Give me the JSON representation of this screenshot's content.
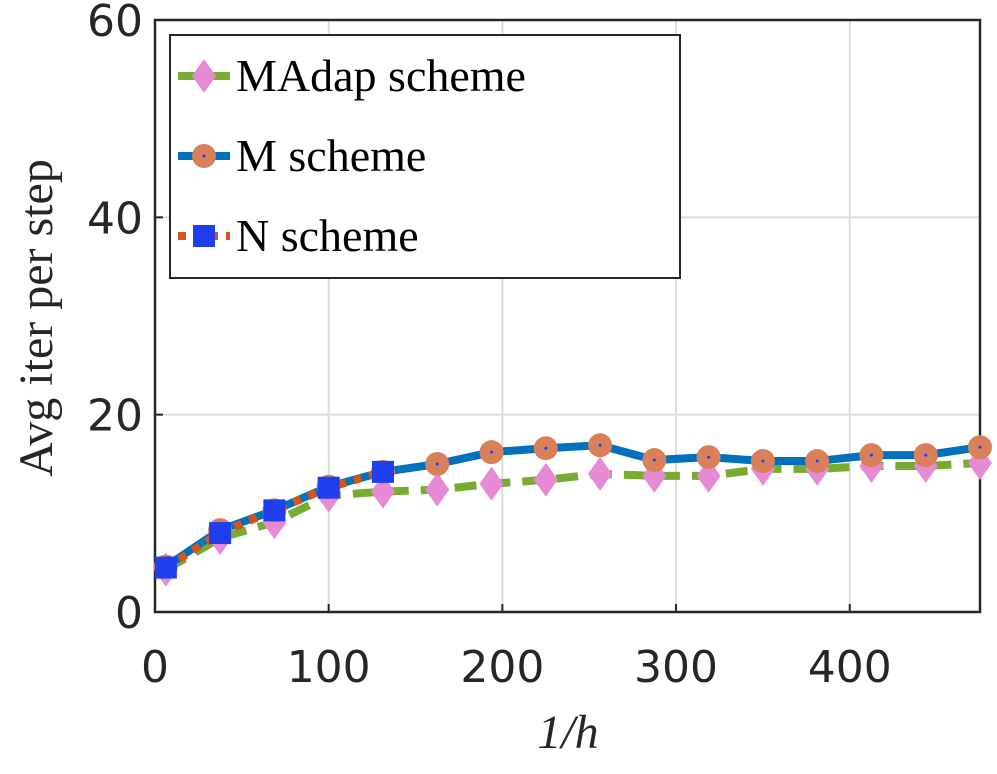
{
  "chart_data": {
    "type": "line",
    "xlabel": "1/h",
    "ylabel": "Avg iter per step",
    "x": [
      6.25,
      37.5,
      68.75,
      100,
      131.25,
      162.5,
      193.75,
      225,
      256.25,
      287.5,
      318.75,
      350,
      381.25,
      412.5,
      443.75,
      475
    ],
    "series": [
      {
        "name": "MAdap scheme",
        "color": "#77ac30",
        "marker_color": "#e68ad4",
        "marker": "diamond",
        "dash": "dashed",
        "values": [
          4.3,
          7.5,
          9.1,
          11.8,
          12.2,
          12.4,
          13.0,
          13.4,
          14.0,
          13.8,
          13.8,
          14.5,
          14.5,
          14.8,
          14.8,
          15.1
        ]
      },
      {
        "name": "M scheme",
        "color": "#0072bd",
        "marker_color": "#d9805a",
        "marker": "circle",
        "dash": "solid",
        "values": [
          4.6,
          8.3,
          10.3,
          12.7,
          14.2,
          15.0,
          16.2,
          16.6,
          16.9,
          15.4,
          15.7,
          15.3,
          15.3,
          15.9,
          15.9,
          16.7
        ]
      },
      {
        "name": "N scheme",
        "color": "#d95319",
        "marker_color": "#1f3fef",
        "marker": "square",
        "dash": "dotted",
        "values": [
          4.5,
          8.0,
          10.3,
          12.6,
          14.2,
          null,
          null,
          null,
          null,
          null,
          null,
          null,
          null,
          null,
          null,
          null
        ]
      }
    ],
    "xlim": [
      0,
      475
    ],
    "xticks": [
      0,
      100,
      200,
      300,
      400
    ],
    "ylim": [
      0,
      60
    ],
    "yticks": [
      0,
      20,
      40,
      60
    ],
    "grid": true,
    "legend": "top-left"
  }
}
